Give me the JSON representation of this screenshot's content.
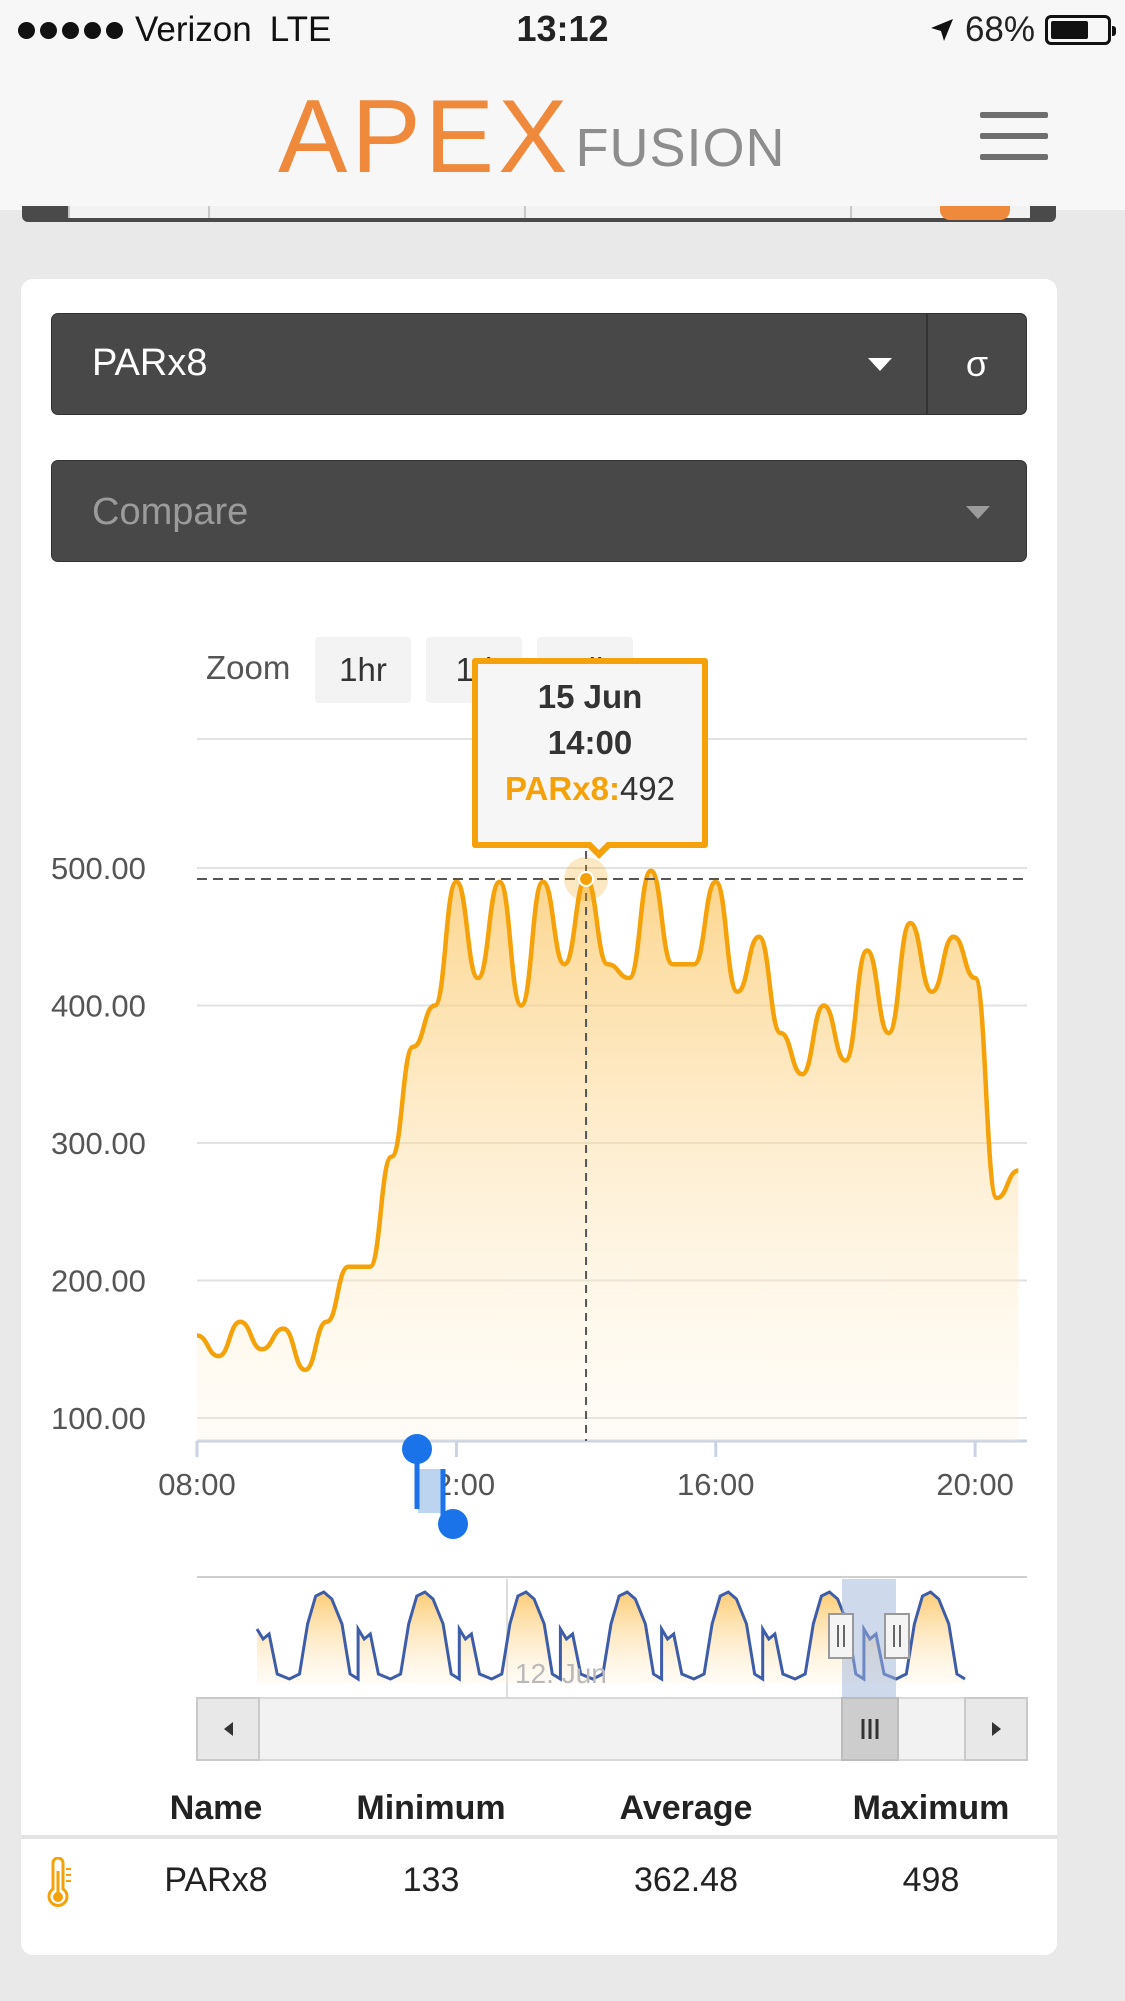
{
  "status_bar": {
    "carrier": "Verizon",
    "network": "LTE",
    "time": "13:12",
    "battery": "68%",
    "battery_level": 0.68
  },
  "header": {
    "logo_main": "APEX",
    "logo_sub": "FUSION"
  },
  "card": {
    "probe_select": {
      "value": "PARx8",
      "sigma_label": "σ"
    },
    "compare_select": {
      "placeholder": "Compare"
    },
    "zoom": {
      "label": "Zoom",
      "buttons": [
        "1hr",
        "1d",
        "All"
      ]
    },
    "tooltip": {
      "date": "15 Jun",
      "time": "14:00",
      "series": "PARx8",
      "separator": ":",
      "value": "492"
    },
    "navigator": {
      "date_label": "12. Jun"
    },
    "stats": {
      "headers": {
        "name": "Name",
        "minimum": "Minimum",
        "average": "Average",
        "maximum": "Maximum"
      },
      "row": {
        "icon": "thermometer-icon",
        "name": "PARx8",
        "minimum": "133",
        "average": "362.48",
        "maximum": "498"
      }
    }
  },
  "chart_data": {
    "type": "area",
    "series": [
      {
        "name": "PARx8",
        "color": "#f5a20a"
      }
    ],
    "x": [
      "08:00",
      "08:20",
      "08:40",
      "09:00",
      "09:20",
      "09:40",
      "10:00",
      "10:20",
      "10:40",
      "11:00",
      "11:20",
      "11:40",
      "12:00",
      "12:20",
      "12:40",
      "13:00",
      "13:20",
      "13:40",
      "14:00",
      "14:20",
      "14:40",
      "15:00",
      "15:20",
      "15:40",
      "16:00",
      "16:20",
      "16:40",
      "17:00",
      "17:20",
      "17:40",
      "18:00",
      "18:20",
      "18:40",
      "19:00",
      "19:20",
      "19:40",
      "20:00",
      "20:20",
      "20:40"
    ],
    "values": [
      160,
      145,
      170,
      150,
      165,
      135,
      170,
      210,
      210,
      290,
      370,
      400,
      490,
      420,
      490,
      400,
      490,
      430,
      492,
      430,
      420,
      498,
      430,
      430,
      490,
      410,
      450,
      380,
      350,
      400,
      360,
      440,
      380,
      460,
      410,
      450,
      420,
      260,
      280
    ],
    "yticks": [
      "100.00",
      "200.00",
      "300.00",
      "400.00",
      "500.00"
    ],
    "ylim": [
      100,
      500
    ],
    "xticks": [
      "08:00",
      "12:00",
      "16:00",
      "20:00"
    ],
    "plot_line_value": 492,
    "grid": true
  }
}
